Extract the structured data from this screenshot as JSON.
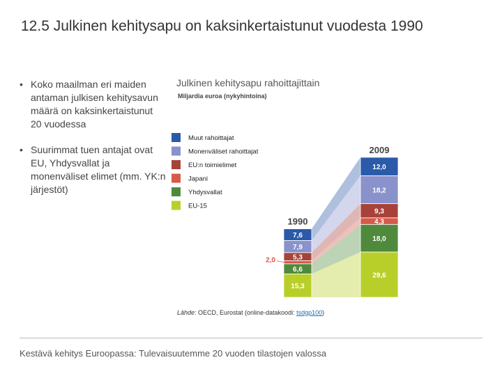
{
  "slide": {
    "title": "12.5 Julkinen kehitysapu on kaksinkertaistunut vuodesta 1990",
    "bullets": [
      "Koko maailman eri maiden antaman julkisen kehitysavun määrä on kaksinkertaistunut 20 vuodessa",
      "Suurimmat tuen antajat ovat EU, Yhdysvallat ja monenväliset elimet (mm. YK:n järjestöt)"
    ],
    "bullet_glyph": "•",
    "footer": "Kestävä kehitys Euroopassa: Tulevaisuutemme 20 vuoden tilastojen valossa",
    "source": {
      "prefix": "Lähde",
      "text": ": OECD, Eurostat (online-datakoodi: ",
      "code": "tsdgp100",
      "suffix": ")"
    }
  },
  "chart_data": {
    "type": "bar",
    "title": "Julkinen kehitysapu rahoittajittain",
    "subtitle": "Miljardia euroa (nykyhintoina)",
    "categories": [
      "1990",
      "2009"
    ],
    "series": [
      {
        "name": "EU-15",
        "color": "#b8cf2a",
        "values": [
          15.3,
          29.6
        ]
      },
      {
        "name": "Yhdysvallat",
        "color": "#4f8a3c",
        "values": [
          6.6,
          18.0
        ]
      },
      {
        "name": "Japani",
        "color": "#d65a48",
        "values": [
          2.0,
          4.3
        ]
      },
      {
        "name": "EU:n toimielimet",
        "color": "#a7423a",
        "values": [
          5.3,
          9.3
        ]
      },
      {
        "name": "Monenväliset rahoittajat",
        "color": "#8a92cc",
        "values": [
          7.9,
          18.2
        ]
      },
      {
        "name": "Muut rahoittajat",
        "color": "#2a5aa8",
        "values": [
          7.6,
          12.0
        ]
      }
    ],
    "labels": {
      "1990": [
        "15,3",
        "6,6",
        "2,0",
        "5,3",
        "7,9",
        "7,6"
      ],
      "2009": [
        "29,6",
        "18,0",
        "4,3",
        "9,3",
        "18,2",
        "12,0"
      ]
    },
    "legend_order": [
      "Muut rahoittajat",
      "Monenväliset rahoittajat",
      "EU:n toimielimet",
      "Japani",
      "Yhdysvallat",
      "EU-15"
    ]
  }
}
